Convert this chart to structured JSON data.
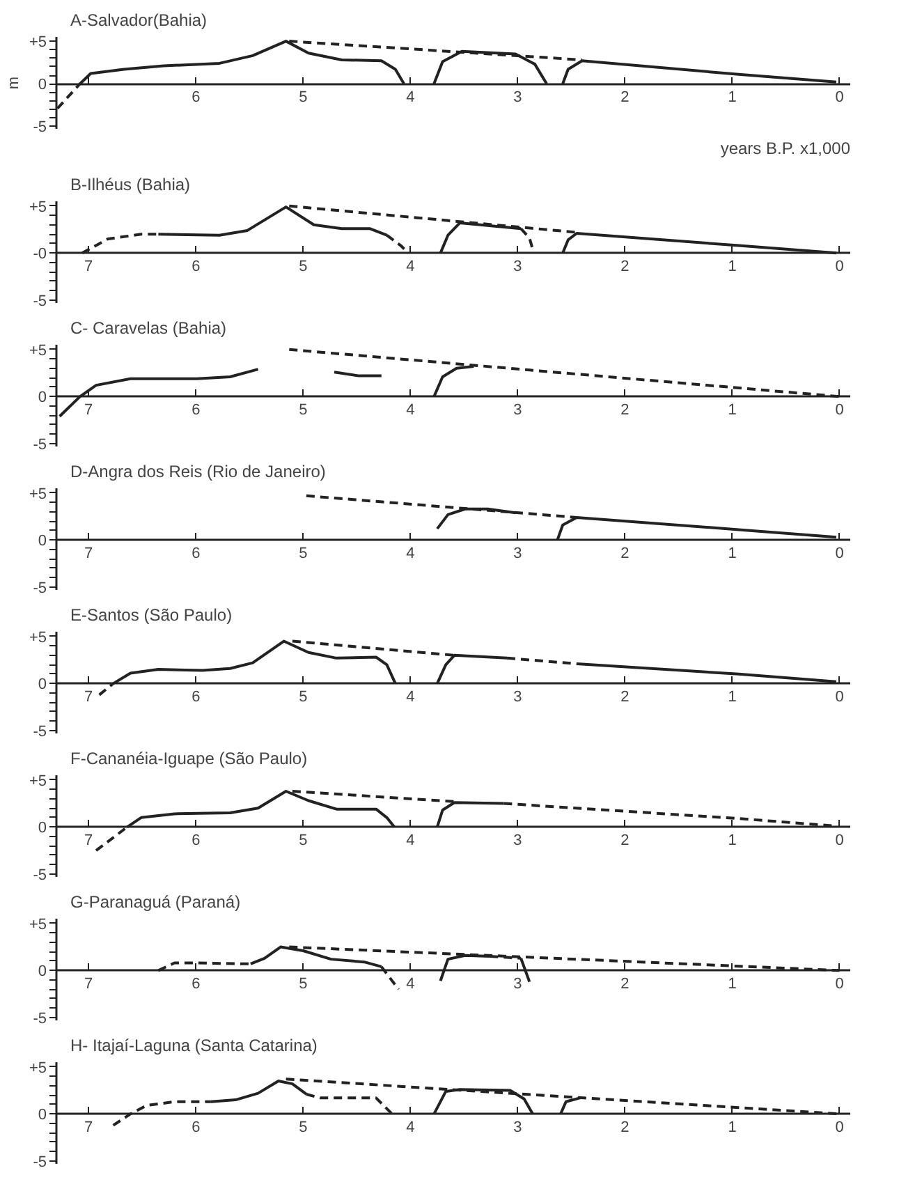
{
  "chart_data": [
    {
      "type": "line",
      "title": "A-Salvador(Bahia)",
      "xlabel": "years B.P. x1,000",
      "ylabel": "m",
      "xlim": [
        7.3,
        -0.1
      ],
      "ylim": [
        -5.3,
        5.5
      ],
      "xticks": [
        {
          "value": 7,
          "label": null
        },
        6,
        5,
        4,
        3,
        2,
        1,
        0
      ],
      "yticks": [
        {
          "value": 5,
          "label": "+5"
        },
        {
          "value": 4,
          "label": null
        },
        {
          "value": 3,
          "label": null
        },
        {
          "value": 2,
          "label": null
        },
        {
          "value": 1,
          "label": null
        },
        0,
        {
          "value": -1,
          "label": null
        },
        {
          "value": -2,
          "label": null
        },
        {
          "value": -3,
          "label": null
        },
        {
          "value": -4,
          "label": null
        },
        {
          "value": -5,
          "label": "-5"
        }
      ],
      "series": [
        {
          "color": "#222222",
          "line_style": "dashed",
          "x": [
            7.29,
            7.08
          ],
          "values": [
            -2.9,
            0
          ]
        },
        {
          "color": "#222222",
          "line_style": "solid",
          "x": [
            7.08,
            6.98,
            6.67,
            6.3,
            5.78,
            5.47,
            5.16,
            4.95,
            4.64,
            4.27,
            4.14,
            4.06
          ],
          "values": [
            0,
            1.2,
            1.7,
            2.1,
            2.4,
            3.3,
            5.0,
            3.6,
            2.8,
            2.7,
            1.7,
            0
          ]
        },
        {
          "color": "#222222",
          "line_style": "solid",
          "x": [
            3.78,
            3.7,
            3.52,
            3.02,
            2.84,
            2.73
          ],
          "values": [
            0,
            2.6,
            3.8,
            3.5,
            2.3,
            0
          ]
        },
        {
          "color": "#222222",
          "line_style": "solid",
          "x": [
            2.58,
            2.53,
            2.4,
            0.94,
            0.03
          ],
          "values": [
            0,
            1.7,
            2.7,
            1.1,
            0.2
          ]
        },
        {
          "color": "#222222",
          "line_style": "dashed",
          "x": [
            5.13,
            2.4
          ],
          "values": [
            5.0,
            2.8
          ]
        }
      ]
    },
    {
      "type": "line",
      "title": "B-Ilhéus (Bahia)",
      "xlim": [
        7.3,
        -0.1
      ],
      "ylim": [
        -5.3,
        5.5
      ],
      "xticks": [
        7,
        6,
        5,
        4,
        3,
        2,
        1,
        0
      ],
      "yticks": [
        {
          "value": 5,
          "label": "+5"
        },
        {
          "value": 4,
          "label": null
        },
        {
          "value": 3,
          "label": null
        },
        {
          "value": 2,
          "label": null
        },
        {
          "value": 1,
          "label": null
        },
        {
          "value": 0,
          "label": "-0"
        },
        {
          "value": -1,
          "label": null
        },
        {
          "value": -2,
          "label": null
        },
        {
          "value": -3,
          "label": null
        },
        {
          "value": -4,
          "label": null
        },
        {
          "value": -5,
          "label": "-5"
        }
      ],
      "series": [
        {
          "color": "#222222",
          "line_style": "dashed",
          "x": [
            7.06,
            6.82,
            6.51,
            6.35
          ],
          "values": [
            0,
            1.5,
            2.0,
            2.0
          ]
        },
        {
          "color": "#222222",
          "line_style": "solid",
          "x": [
            6.35,
            5.78,
            5.52,
            5.16,
            4.9,
            4.64,
            4.38,
            4.22
          ],
          "values": [
            2.0,
            1.9,
            2.4,
            4.9,
            3.0,
            2.6,
            2.6,
            1.9
          ]
        },
        {
          "color": "#222222",
          "line_style": "dashed",
          "x": [
            4.22,
            4.09,
            4.02
          ],
          "values": [
            1.9,
            0.8,
            0
          ]
        },
        {
          "color": "#222222",
          "line_style": "solid",
          "x": [
            3.72,
            3.65,
            3.54,
            2.97
          ],
          "values": [
            0,
            1.9,
            3.2,
            2.6
          ]
        },
        {
          "color": "#222222",
          "line_style": "dashed",
          "x": [
            2.97,
            2.89,
            2.85
          ],
          "values": [
            2.6,
            1.6,
            0
          ]
        },
        {
          "color": "#222222",
          "line_style": "solid",
          "x": [
            2.58,
            2.53,
            2.45,
            0.94,
            0.03
          ],
          "values": [
            0,
            1.4,
            2.1,
            0.8,
            0
          ]
        },
        {
          "color": "#222222",
          "line_style": "dashed",
          "x": [
            5.13,
            2.45
          ],
          "values": [
            5.0,
            2.2
          ]
        }
      ]
    },
    {
      "type": "line",
      "title": "C- Caravelas (Bahia)",
      "xlim": [
        7.3,
        -0.1
      ],
      "ylim": [
        -5.3,
        5.5
      ],
      "xticks": [
        7,
        6,
        5,
        4,
        3,
        2,
        1,
        0
      ],
      "yticks": [
        {
          "value": 5,
          "label": "+5"
        },
        {
          "value": 4,
          "label": null
        },
        {
          "value": 3,
          "label": null
        },
        {
          "value": 2,
          "label": null
        },
        {
          "value": 1,
          "label": null
        },
        0,
        {
          "value": -1,
          "label": null
        },
        {
          "value": -2,
          "label": null
        },
        {
          "value": -3,
          "label": null
        },
        {
          "value": -4,
          "label": null
        },
        {
          "value": -5,
          "label": "-5"
        }
      ],
      "series": [
        {
          "color": "#222222",
          "line_style": "solid",
          "x": [
            7.27,
            7.08,
            6.93,
            6.61,
            5.99,
            5.68,
            5.42
          ],
          "values": [
            -2.1,
            0,
            1.2,
            1.9,
            1.9,
            2.1,
            2.9
          ]
        },
        {
          "color": "#222222",
          "line_style": "solid",
          "x": [
            4.71,
            4.48,
            4.27
          ],
          "values": [
            2.6,
            2.2,
            2.2
          ]
        },
        {
          "color": "#222222",
          "line_style": "solid",
          "x": [
            3.78,
            3.7,
            3.57,
            3.41
          ],
          "values": [
            0,
            2.1,
            3.0,
            3.2
          ]
        },
        {
          "color": "#222222",
          "line_style": "dashed",
          "x": [
            5.13,
            0
          ],
          "values": [
            5.0,
            0
          ]
        }
      ]
    },
    {
      "type": "line",
      "title": "D-Angra dos Reis (Rio de Janeiro)",
      "xlim": [
        7.3,
        -0.1
      ],
      "ylim": [
        -5.3,
        5.5
      ],
      "xticks": [
        7,
        6,
        5,
        4,
        3,
        2,
        1,
        0
      ],
      "yticks": [
        {
          "value": 5,
          "label": "+5"
        },
        {
          "value": 4,
          "label": null
        },
        {
          "value": 3,
          "label": null
        },
        {
          "value": 2,
          "label": null
        },
        {
          "value": 1,
          "label": null
        },
        0,
        {
          "value": -1,
          "label": null
        },
        {
          "value": -2,
          "label": null
        },
        {
          "value": -3,
          "label": null
        },
        {
          "value": -4,
          "label": null
        },
        {
          "value": -5,
          "label": "-5"
        }
      ],
      "series": [
        {
          "color": "#222222",
          "line_style": "solid",
          "x": [
            3.75,
            3.65,
            3.49,
            3.28,
            3.02
          ],
          "values": [
            1.2,
            2.7,
            3.3,
            3.3,
            2.9
          ]
        },
        {
          "color": "#222222",
          "line_style": "solid",
          "x": [
            2.63,
            2.58,
            2.45,
            0.94,
            0.03
          ],
          "values": [
            0,
            1.6,
            2.4,
            1.1,
            0.3
          ]
        },
        {
          "color": "#222222",
          "line_style": "dashed",
          "x": [
            4.97,
            2.45
          ],
          "values": [
            4.7,
            2.4
          ]
        }
      ]
    },
    {
      "type": "line",
      "title": "E-Santos (São Paulo)",
      "xlim": [
        7.3,
        -0.1
      ],
      "ylim": [
        -5.3,
        5.5
      ],
      "xticks": [
        7,
        6,
        5,
        4,
        3,
        2,
        1,
        0
      ],
      "yticks": [
        {
          "value": 5,
          "label": "+5"
        },
        {
          "value": 4,
          "label": null
        },
        {
          "value": 3,
          "label": null
        },
        {
          "value": 2,
          "label": null
        },
        {
          "value": 1,
          "label": null
        },
        0,
        {
          "value": -1,
          "label": null
        },
        {
          "value": -2,
          "label": null
        },
        {
          "value": -3,
          "label": null
        },
        {
          "value": -4,
          "label": null
        },
        {
          "value": -5,
          "label": "-5"
        }
      ],
      "series": [
        {
          "color": "#222222",
          "line_style": "dashed",
          "x": [
            6.9,
            6.77
          ],
          "values": [
            -1.2,
            0
          ]
        },
        {
          "color": "#222222",
          "line_style": "solid",
          "x": [
            6.77,
            6.61,
            6.35,
            5.94,
            5.68,
            5.47,
            5.18,
            4.95,
            4.69,
            4.32,
            4.22,
            4.14
          ],
          "values": [
            0,
            1.1,
            1.5,
            1.4,
            1.6,
            2.2,
            4.5,
            3.3,
            2.7,
            2.8,
            2.0,
            0
          ]
        },
        {
          "color": "#222222",
          "line_style": "solid",
          "x": [
            3.75,
            3.67,
            3.59,
            3.1
          ],
          "values": [
            0,
            2.0,
            3.0,
            2.7
          ]
        },
        {
          "color": "#222222",
          "line_style": "dashed",
          "x": [
            5.1,
            3.59
          ],
          "values": [
            4.5,
            3.0
          ]
        },
        {
          "color": "#222222",
          "line_style": "dashed",
          "x": [
            3.1,
            2.45
          ],
          "values": [
            2.7,
            2.1
          ]
        },
        {
          "color": "#222222",
          "line_style": "solid",
          "x": [
            2.45,
            0.94,
            0.03
          ],
          "values": [
            2.1,
            1.0,
            0.2
          ]
        }
      ]
    },
    {
      "type": "line",
      "title": "F-Cananéia-Iguape (São Paulo)",
      "xlim": [
        7.3,
        -0.1
      ],
      "ylim": [
        -5.3,
        5.5
      ],
      "xticks": [
        7,
        6,
        5,
        4,
        3,
        2,
        1,
        0
      ],
      "yticks": [
        {
          "value": 5,
          "label": "+5"
        },
        {
          "value": 4,
          "label": null
        },
        {
          "value": 3,
          "label": null
        },
        {
          "value": 2,
          "label": null
        },
        {
          "value": 1,
          "label": null
        },
        0,
        {
          "value": -1,
          "label": null
        },
        {
          "value": -2,
          "label": null
        },
        {
          "value": -3,
          "label": null
        },
        {
          "value": -4,
          "label": null
        },
        {
          "value": -5,
          "label": "-5"
        }
      ],
      "series": [
        {
          "color": "#222222",
          "line_style": "dashed",
          "x": [
            6.93,
            6.64
          ],
          "values": [
            -2.5,
            0
          ]
        },
        {
          "color": "#222222",
          "line_style": "solid",
          "x": [
            6.64,
            6.51,
            6.2,
            5.68,
            5.42,
            5.16,
            4.95,
            4.69,
            4.32,
            4.22,
            4.15
          ],
          "values": [
            0,
            1.0,
            1.4,
            1.5,
            2.0,
            3.8,
            2.8,
            1.9,
            1.9,
            1.0,
            0
          ]
        },
        {
          "color": "#222222",
          "line_style": "solid",
          "x": [
            3.75,
            3.7,
            3.59,
            3.13
          ],
          "values": [
            0,
            1.8,
            2.6,
            2.5
          ]
        },
        {
          "color": "#222222",
          "line_style": "dashed",
          "x": [
            5.1,
            3.59
          ],
          "values": [
            3.8,
            2.7
          ]
        },
        {
          "color": "#222222",
          "line_style": "dashed",
          "x": [
            3.13,
            0.94,
            0.03
          ],
          "values": [
            2.5,
            0.9,
            0.1
          ]
        }
      ]
    },
    {
      "type": "line",
      "title": "G-Paranaguá (Paraná)",
      "xlim": [
        7.3,
        -0.1
      ],
      "ylim": [
        -5.3,
        5.5
      ],
      "xticks": [
        7,
        6,
        5,
        4,
        3,
        2,
        1,
        0
      ],
      "yticks": [
        {
          "value": 5,
          "label": "+5"
        },
        {
          "value": 4,
          "label": null
        },
        {
          "value": 3,
          "label": null
        },
        {
          "value": 2,
          "label": null
        },
        {
          "value": 1,
          "label": null
        },
        0,
        {
          "value": -1,
          "label": null
        },
        {
          "value": -2,
          "label": null
        },
        {
          "value": -3,
          "label": null
        },
        {
          "value": -4,
          "label": null
        },
        {
          "value": -5,
          "label": "-5"
        }
      ],
      "series": [
        {
          "color": "#222222",
          "line_style": "dashed",
          "x": [
            6.35,
            6.2,
            5.99,
            5.49
          ],
          "values": [
            0,
            0.8,
            0.8,
            0.7
          ]
        },
        {
          "color": "#222222",
          "line_style": "solid",
          "x": [
            5.49,
            5.36,
            5.21,
            5.0,
            4.74,
            4.43,
            4.27
          ],
          "values": [
            0.7,
            1.3,
            2.5,
            2.1,
            1.2,
            0.9,
            0.4
          ]
        },
        {
          "color": "#222222",
          "line_style": "dashed",
          "x": [
            4.27,
            4.11
          ],
          "values": [
            0.4,
            -2.0
          ]
        },
        {
          "color": "#222222",
          "line_style": "solid",
          "x": [
            3.72,
            3.65,
            3.49,
            3.26
          ],
          "values": [
            -1.1,
            1.2,
            1.6,
            1.5
          ]
        },
        {
          "color": "#222222",
          "line_style": "dashed",
          "x": [
            3.26,
            2.97
          ],
          "values": [
            1.5,
            1.3
          ]
        },
        {
          "color": "#222222",
          "line_style": "solid",
          "x": [
            2.97,
            2.89
          ],
          "values": [
            1.3,
            -1.2
          ]
        },
        {
          "color": "#222222",
          "line_style": "dashed",
          "x": [
            5.13,
            0
          ],
          "values": [
            2.5,
            0
          ]
        }
      ]
    },
    {
      "type": "line",
      "title": "H- Itajaí-Laguna (Santa Catarina)",
      "xlim": [
        7.3,
        -0.1
      ],
      "ylim": [
        -5.3,
        5.5
      ],
      "xticks": [
        7,
        6,
        5,
        4,
        3,
        2,
        1,
        0
      ],
      "yticks": [
        {
          "value": 5,
          "label": "+5"
        },
        {
          "value": 4,
          "label": null
        },
        {
          "value": 3,
          "label": null
        },
        {
          "value": 2,
          "label": null
        },
        {
          "value": 1,
          "label": null
        },
        0,
        {
          "value": -1,
          "label": null
        },
        {
          "value": -2,
          "label": null
        },
        {
          "value": -3,
          "label": null
        },
        {
          "value": -4,
          "label": null
        },
        {
          "value": -5,
          "label": "-5"
        }
      ],
      "series": [
        {
          "color": "#222222",
          "line_style": "dashed",
          "x": [
            6.77,
            6.61,
            6.46,
            6.2,
            5.86
          ],
          "values": [
            -1.2,
            0,
            0.9,
            1.3,
            1.3
          ]
        },
        {
          "color": "#222222",
          "line_style": "solid",
          "x": [
            5.86,
            5.63,
            5.42,
            5.23,
            5.1,
            4.97
          ],
          "values": [
            1.3,
            1.5,
            2.2,
            3.5,
            3.2,
            2.1
          ]
        },
        {
          "color": "#222222",
          "line_style": "dashed",
          "x": [
            4.97,
            4.84,
            4.32,
            4.17
          ],
          "values": [
            2.1,
            1.7,
            1.7,
            0
          ]
        },
        {
          "color": "#222222",
          "line_style": "solid",
          "x": [
            3.78,
            3.67,
            3.54,
            3.07,
            2.94,
            2.86
          ],
          "values": [
            0,
            2.4,
            2.6,
            2.5,
            1.6,
            0
          ]
        },
        {
          "color": "#222222",
          "line_style": "solid",
          "x": [
            2.6,
            2.55,
            2.42
          ],
          "values": [
            0,
            1.3,
            1.7
          ]
        },
        {
          "color": "#222222",
          "line_style": "dashed",
          "x": [
            5.16,
            0
          ],
          "values": [
            3.7,
            0
          ]
        }
      ]
    }
  ]
}
